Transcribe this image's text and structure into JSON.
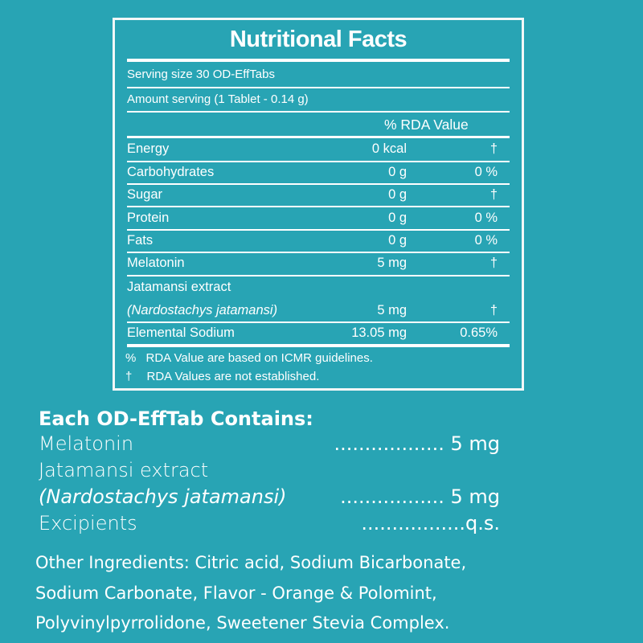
{
  "facts": {
    "title": "Nutritional Facts",
    "serving_size": "Serving size 30 OD-EffTabs",
    "amount_serving": "Amount serving (1 Tablet - 0.14 g)",
    "rda_header": "% RDA Value",
    "rows": [
      {
        "name": "Energy",
        "amount": "0 kcal",
        "rda": "†"
      },
      {
        "name": "Carbohydrates",
        "amount": "0 g",
        "rda": "0 %"
      },
      {
        "name": "Sugar",
        "amount": "0 g",
        "rda": "†"
      },
      {
        "name": "Protein",
        "amount": "0 g",
        "rda": "0 %"
      },
      {
        "name": "Fats",
        "amount": "0 g",
        "rda": "0 %"
      },
      {
        "name": "Melatonin",
        "amount": "5 mg",
        "rda": "†"
      },
      {
        "name": "Jatamansi extract",
        "name2": "(Nardostachys jatamansi)",
        "amount": "5 mg",
        "rda": "†"
      },
      {
        "name": "Elemental Sodium",
        "amount": "13.05 mg",
        "rda": "0.65%"
      }
    ],
    "notes": [
      {
        "sym": "%",
        "text": "RDA Value are based on ICMR guidelines."
      },
      {
        "sym": "†",
        "text": "RDA Values are not established."
      }
    ]
  },
  "contains": {
    "heading": "Each OD-EffTab Contains:",
    "items": [
      {
        "name": "Melatonin",
        "value": ".................. 5 mg"
      },
      {
        "name": "Jatamansi extract",
        "name2": "(Nardostachys jatamansi)",
        "value": "................. 5 mg"
      },
      {
        "name": "Excipients",
        "value": ".................q.s."
      }
    ]
  },
  "other_ingredients": [
    "Other Ingredients: Citric acid, Sodium Bicarbonate,",
    "Sodium Carbonate, Flavor - Orange & Polomint,",
    "Polyvinylpyrrolidone, Sweetener Stevia Complex."
  ]
}
